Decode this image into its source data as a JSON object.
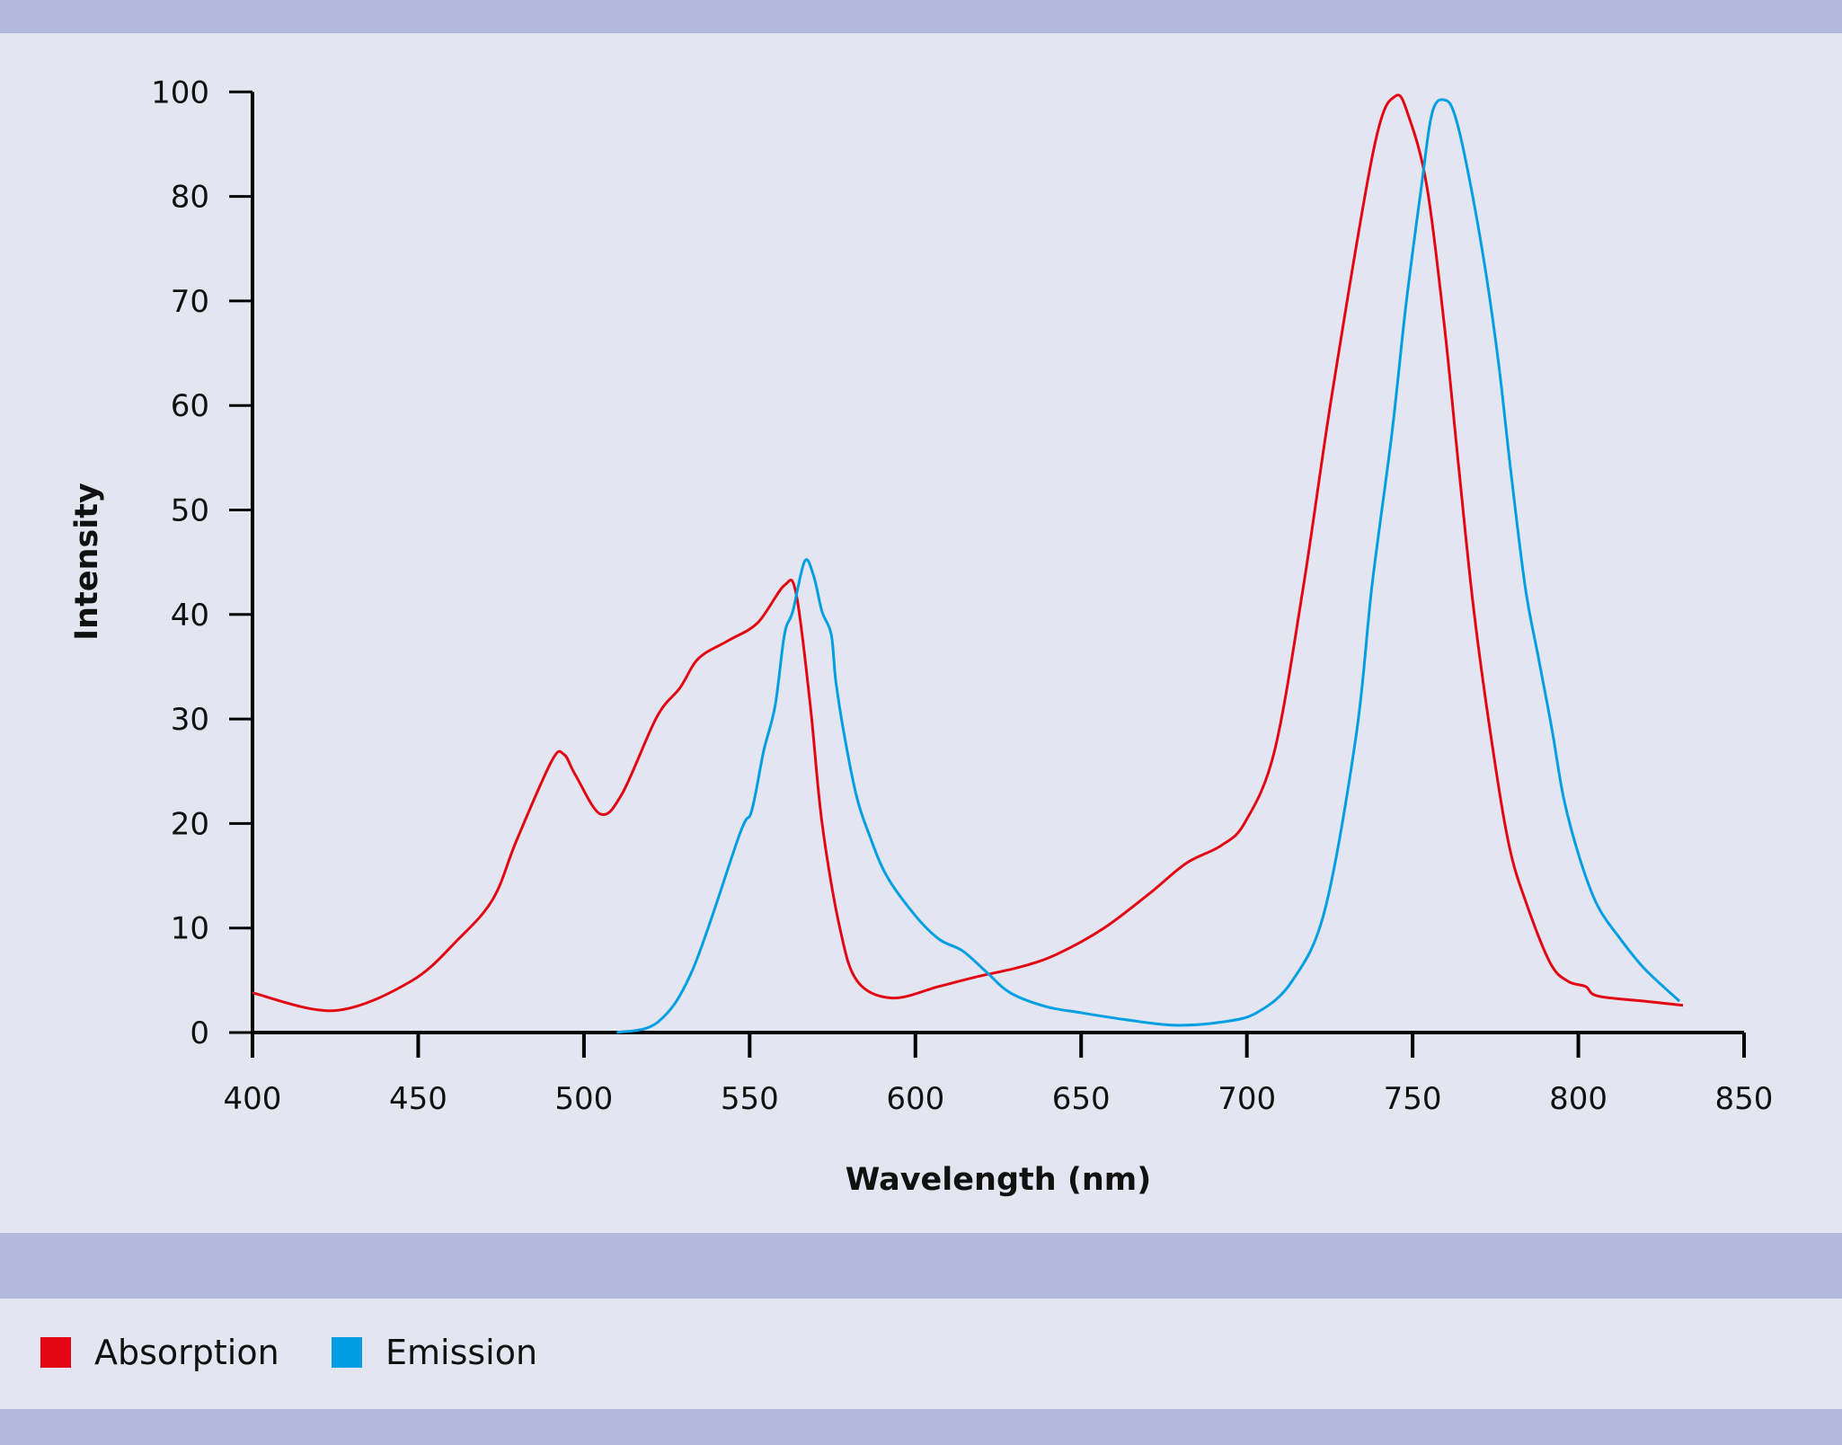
{
  "chart_data": {
    "type": "line",
    "title": "",
    "xlabel": "Wavelength (nm)",
    "ylabel": "Intensity",
    "xlim": [
      400,
      850
    ],
    "xticks": [
      400,
      450,
      500,
      550,
      600,
      650,
      700,
      750,
      800,
      850
    ],
    "yticks": [
      "0",
      "10",
      "20",
      "30",
      "40",
      "50",
      "60",
      "70",
      "80",
      "100"
    ],
    "grid": false,
    "legend_position": "bottom-left",
    "series": [
      {
        "name": "Absorption",
        "color": "#e30613",
        "x": [
          400,
          424.8,
          447.8,
          462,
          472.6,
          479.7,
          490.3,
          494,
          497.5,
          505,
          511.6,
          522,
          529,
          534.6,
          543.5,
          552.4,
          560.5,
          564,
          568.3,
          571.8,
          577.2,
          582.5,
          593,
          607,
          618,
          632,
          642.7,
          656.9,
          671,
          681.7,
          692.3,
          699.4,
          708.3,
          717,
          726,
          738.4,
          744.8,
          749,
          754.4,
          759.7,
          764,
          768.5,
          773.8,
          779.1,
          784.5,
          791.6,
          796.9,
          802.2,
          805.8,
          820,
          831.6
        ],
        "y": [
          3.8,
          2.1,
          4.9,
          8.9,
          12.8,
          18.4,
          26,
          26.6,
          24.6,
          20.9,
          22.9,
          30.2,
          33,
          35.8,
          37.5,
          39.2,
          42.8,
          42,
          31.3,
          20.1,
          10,
          4.9,
          3.3,
          4.4,
          5.3,
          6.3,
          7.5,
          10,
          13.4,
          16.2,
          17.9,
          20.1,
          26.9,
          42.6,
          61.7,
          84.7,
          89.6,
          87.5,
          80.8,
          67.3,
          53.8,
          40.3,
          28,
          17.9,
          12.2,
          6.6,
          4.9,
          4.4,
          3.5,
          3,
          2.6
        ]
      },
      {
        "name": "Emission",
        "color": "#009fe3",
        "x": [
          509.9,
          522.3,
          532.9,
          547,
          550.6,
          554.2,
          557.7,
          560.5,
          563,
          566.6,
          569.3,
          571.8,
          574.6,
          576,
          578.8,
          582.4,
          586,
          591.3,
          600.2,
          607.3,
          614.3,
          621.4,
          628.6,
          639.2,
          649.8,
          664,
          678.2,
          692.3,
          703,
          713.6,
          723.5,
          733,
          737.7,
          743.7,
          748,
          752.6,
          756,
          760,
          763,
          767,
          772,
          776,
          779.6,
          784,
          788,
          792,
          795.6,
          800.4,
          805.7,
          812.8,
          820,
          830.5
        ],
        "y": [
          0,
          1,
          6.1,
          19,
          21.2,
          26.9,
          31.3,
          38.1,
          40.3,
          45.1,
          43.7,
          40.3,
          38.1,
          33.6,
          28,
          22.4,
          19,
          15,
          11.1,
          8.9,
          7.8,
          5.8,
          3.8,
          2.5,
          1.9,
          1.2,
          0.7,
          1,
          1.9,
          4.9,
          11.7,
          28.5,
          42.6,
          57.2,
          69.6,
          80.8,
          88.1,
          89.2,
          87.5,
          81.9,
          72.9,
          63.9,
          53.8,
          42.6,
          35.8,
          29.1,
          22.4,
          16.7,
          12.2,
          8.9,
          6.1,
          3
        ]
      }
    ]
  },
  "legend": {
    "items": [
      {
        "label": "Absorption",
        "color": "#e30613"
      },
      {
        "label": "Emission",
        "color": "#009fe3"
      }
    ]
  },
  "colors": {
    "background": "#e3e6f1",
    "band": "#b3b9dc"
  }
}
